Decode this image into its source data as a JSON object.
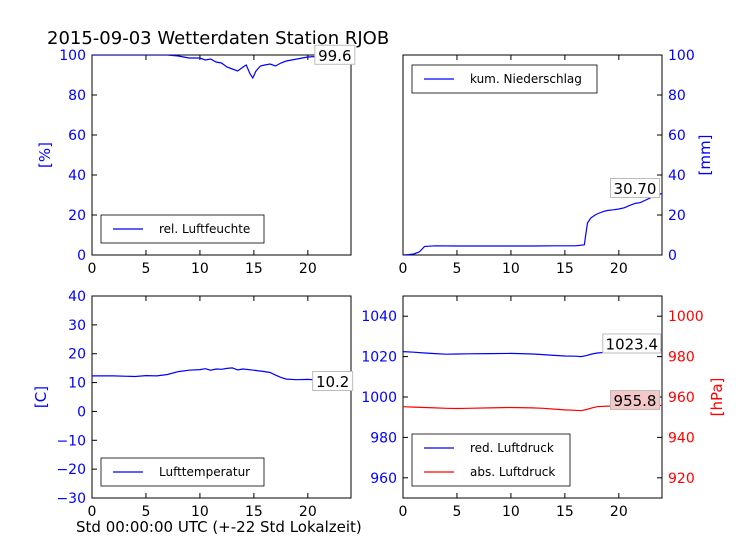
{
  "title": "2015-09-03 Wetterdaten Station RJOB",
  "xlabel": "Std 00:00:00 UTC (+-22 Std Lokalzeit)",
  "colors": {
    "blue": "#0000ff",
    "red": "#ff0000",
    "frame": "#000000",
    "text": "#000000"
  },
  "chart_data": [
    {
      "id": "humidity",
      "type": "line",
      "ylabel": "[%]",
      "ylabel_side": "left",
      "xlim": [
        0,
        24
      ],
      "ylim": [
        0,
        100
      ],
      "xticks": [
        "0",
        "5",
        "10",
        "15",
        "20"
      ],
      "yticks": [
        "0",
        "20",
        "40",
        "60",
        "80",
        "100"
      ],
      "legend": {
        "label": "rel. Luftfeuchte",
        "position": "lower-left"
      },
      "annotation": {
        "text": "99.6",
        "x": 22.5,
        "y": 99.6
      },
      "series": [
        {
          "name": "rel. Luftfeuchte",
          "color": "#0000ff",
          "x": [
            0,
            2,
            4,
            6,
            7,
            8,
            9,
            10,
            10.5,
            11,
            11.5,
            12,
            12.5,
            13,
            13.5,
            14,
            14.3,
            14.6,
            14.9,
            15.2,
            15.6,
            16,
            16.5,
            17,
            17.5,
            18,
            19,
            20,
            21,
            22,
            23,
            24
          ],
          "y": [
            100,
            100,
            100,
            100,
            100,
            99.5,
            98.5,
            98.5,
            97.5,
            98,
            96.5,
            96,
            94,
            93,
            92,
            94,
            95,
            91,
            88.5,
            92,
            94.5,
            95,
            95.5,
            94.5,
            96,
            97,
            98,
            99,
            99.3,
            99.5,
            99.6,
            99.6
          ]
        }
      ]
    },
    {
      "id": "precip",
      "type": "line",
      "ylabel": "[mm]",
      "ylabel_side": "right",
      "xlim": [
        0,
        24
      ],
      "ylim": [
        0,
        100
      ],
      "xticks": [
        "0",
        "5",
        "10",
        "15",
        "20"
      ],
      "yticks": [
        "0",
        "20",
        "40",
        "60",
        "80",
        "100"
      ],
      "legend": {
        "label": "kum. Niederschlag",
        "position": "upper-left"
      },
      "annotation": {
        "text": "30.70",
        "x": 21.5,
        "y": 33
      },
      "series": [
        {
          "name": "kum. Niederschlag",
          "color": "#0000ff",
          "x": [
            0,
            0.5,
            1,
            1.5,
            2,
            3,
            5,
            8,
            10,
            12,
            14,
            15,
            16,
            16.8,
            17.1,
            17.4,
            17.8,
            18.2,
            18.6,
            19,
            19.5,
            20,
            20.5,
            21,
            21.5,
            22,
            22.5,
            23,
            23.5,
            24
          ],
          "y": [
            0,
            0.2,
            0.5,
            1.5,
            4.3,
            4.6,
            4.5,
            4.5,
            4.5,
            4.5,
            4.6,
            4.6,
            4.6,
            5.1,
            16,
            18.5,
            20,
            21,
            21.8,
            22.3,
            22.6,
            23,
            23.6,
            24.8,
            25.8,
            26.2,
            27.5,
            28.8,
            30,
            30.7
          ]
        }
      ]
    },
    {
      "id": "temperature",
      "type": "line",
      "ylabel": "[C]",
      "ylabel_side": "left",
      "xlim": [
        0,
        24
      ],
      "ylim": [
        -30,
        40
      ],
      "xticks": [
        "0",
        "5",
        "10",
        "15",
        "20"
      ],
      "yticks": [
        "−30",
        "−20",
        "−10",
        "0",
        "10",
        "20",
        "30",
        "40"
      ],
      "ytick_values": [
        -30,
        -20,
        -10,
        0,
        10,
        20,
        30,
        40
      ],
      "legend": {
        "label": "Lufttemperatur",
        "position": "lower-left"
      },
      "annotation": {
        "text": "10.2",
        "x": 22.3,
        "y": 10.2
      },
      "series": [
        {
          "name": "Lufttemperatur",
          "color": "#0000ff",
          "x": [
            0,
            2,
            4,
            5,
            6,
            7,
            8,
            9,
            10,
            10.5,
            11,
            11.5,
            12,
            12.5,
            13,
            13.5,
            14,
            15,
            16,
            16.5,
            17,
            17.5,
            18,
            19,
            20,
            21,
            22,
            23,
            24
          ],
          "y": [
            12.3,
            12.3,
            12.1,
            12.4,
            12.3,
            12.8,
            13.8,
            14.3,
            14.5,
            14.8,
            14.3,
            14.7,
            14.6,
            14.9,
            15.1,
            14.4,
            14.7,
            14.3,
            13.8,
            13.5,
            12.6,
            11.8,
            11.2,
            11.0,
            11.1,
            10.9,
            10.8,
            10.6,
            10.2
          ]
        }
      ]
    },
    {
      "id": "pressure",
      "type": "line",
      "ylabel": "[hPa]",
      "ylabel_side": "right",
      "xlim": [
        0,
        24
      ],
      "ylim": [
        950,
        1050
      ],
      "ylim_right": [
        910,
        1010
      ],
      "xticks": [
        "0",
        "5",
        "10",
        "15",
        "20"
      ],
      "yticks": [
        "960",
        "980",
        "1000",
        "1020",
        "1040"
      ],
      "ytick_values": [
        960,
        980,
        1000,
        1020,
        1040
      ],
      "yticks_right": [
        "920",
        "940",
        "960",
        "980",
        "1000"
      ],
      "ytick_values_right": [
        920,
        940,
        960,
        980,
        1000
      ],
      "legend": {
        "labels": [
          "red. Luftdruck",
          "abs. Luftdruck"
        ],
        "position": "lower-left"
      },
      "annotations": [
        {
          "text": "1023.4",
          "x": 21.2,
          "y": 1026
        },
        {
          "text": "955.8",
          "x": 21.5,
          "y": 958,
          "axis": "right"
        }
      ],
      "series": [
        {
          "name": "red. Luftdruck",
          "color": "#0000ff",
          "axis": "left",
          "x": [
            0,
            1,
            2,
            3,
            4,
            5,
            6,
            8,
            10,
            12,
            13,
            14,
            15,
            16,
            16.5,
            17,
            17.5,
            18,
            19,
            20,
            21,
            22,
            23,
            24
          ],
          "y": [
            1022.5,
            1022.2,
            1021.8,
            1021.5,
            1021.2,
            1021.3,
            1021.4,
            1021.5,
            1021.6,
            1021.3,
            1021,
            1020.6,
            1020.3,
            1020.2,
            1020,
            1020.5,
            1021.3,
            1021.8,
            1022.2,
            1022.6,
            1022.9,
            1023.1,
            1023.3,
            1023.4
          ]
        },
        {
          "name": "abs. Luftdruck",
          "color": "#ff0000",
          "axis": "right",
          "x": [
            0,
            1,
            2,
            3,
            4,
            5,
            6,
            8,
            10,
            12,
            13,
            14,
            15,
            16,
            16.5,
            17,
            17.5,
            18,
            19,
            20,
            21,
            22,
            23,
            24
          ],
          "y": [
            955.2,
            955.0,
            954.8,
            954.6,
            954.4,
            954.3,
            954.4,
            954.6,
            954.8,
            954.6,
            954.4,
            954.0,
            953.6,
            953.4,
            953.2,
            953.8,
            954.6,
            955.2,
            955.5,
            955.6,
            955.7,
            955.8,
            955.8,
            955.8
          ]
        }
      ]
    }
  ]
}
